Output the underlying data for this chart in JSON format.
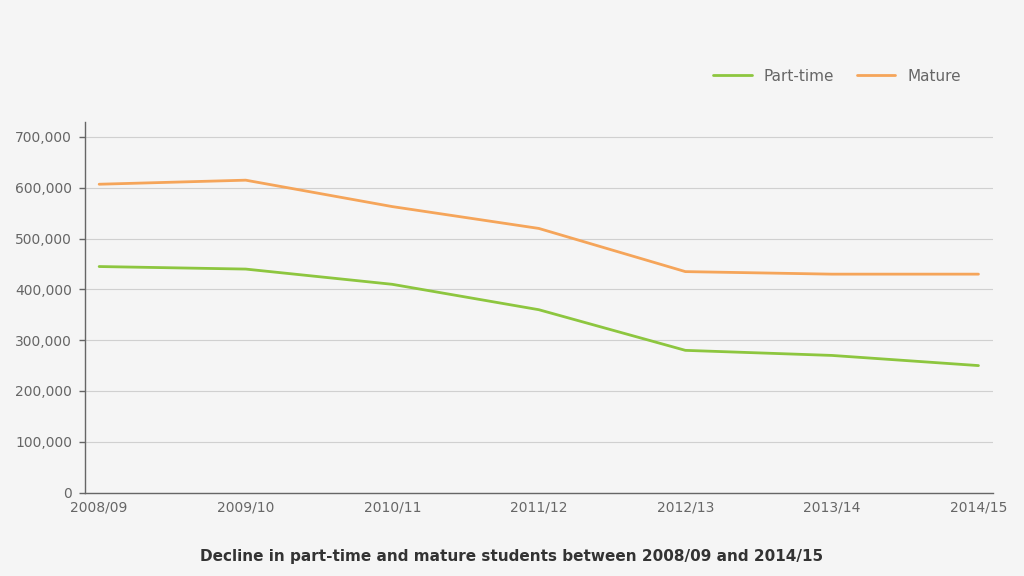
{
  "years": [
    "2008/09",
    "2009/10",
    "2010/11",
    "2011/12",
    "2012/13",
    "2013/14",
    "2014/15"
  ],
  "part_time": [
    445000,
    440000,
    410000,
    360000,
    280000,
    270000,
    250000
  ],
  "mature": [
    607000,
    615000,
    563000,
    520000,
    435000,
    430000,
    430000
  ],
  "part_time_color": "#8dc63f",
  "mature_color": "#f5a55a",
  "part_time_label": "Part-time",
  "mature_label": "Mature",
  "title": "Decline in part-time and mature students between 2008/09 and 2014/15",
  "ylim": [
    0,
    730000
  ],
  "yticks": [
    0,
    100000,
    200000,
    300000,
    400000,
    500000,
    600000,
    700000
  ],
  "background_color": "#f5f5f5",
  "plot_bg_color": "#f5f5f5",
  "grid_color": "#d0d0d0",
  "spine_color": "#666666",
  "tick_color": "#666666",
  "line_width": 2.0,
  "title_fontsize": 11,
  "tick_fontsize": 10,
  "legend_fontsize": 11
}
